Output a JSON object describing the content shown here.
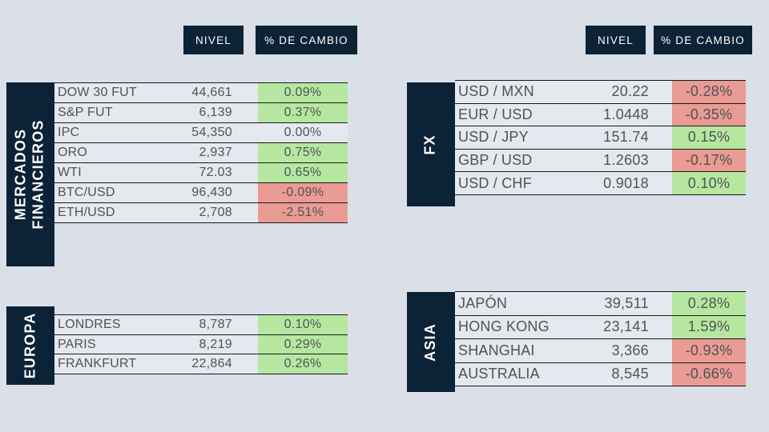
{
  "headers": {
    "nivel": "NIVEL",
    "cambio": "% DE CAMBIO"
  },
  "colors": {
    "navy": "#0c2236",
    "positive_green": "#b6e7a0",
    "negative_red": "#e99b94",
    "page_background": "#dbdfe7",
    "row_background": "#e5e8ee",
    "text": "#4f5357"
  },
  "chart_data": [
    {
      "id": "mercados",
      "type": "table",
      "title": "MERCADOS FINANCIEROS",
      "columns": [
        "",
        "NIVEL",
        "% DE CAMBIO"
      ],
      "rows": [
        {
          "label": "DOW 30 FUT",
          "level": "44,661",
          "change": "0.09%"
        },
        {
          "label": "S&P FUT",
          "level": "6,139",
          "change": "0.37%"
        },
        {
          "label": "IPC",
          "level": "54,350",
          "change": "0.00%"
        },
        {
          "label": "ORO",
          "level": "2,937",
          "change": "0.75%"
        },
        {
          "label": "WTI",
          "level": "72.03",
          "change": "0.65%"
        },
        {
          "label": "BTC/USD",
          "level": "96,430",
          "change": "-0.09%"
        },
        {
          "label": "ETH/USD",
          "level": "2,708",
          "change": "-2.51%"
        }
      ]
    },
    {
      "id": "fx",
      "type": "table",
      "title": "FX",
      "columns": [
        "",
        "NIVEL",
        "% DE CAMBIO"
      ],
      "rows": [
        {
          "label": "USD / MXN",
          "level": "20.22",
          "change": "-0.28%"
        },
        {
          "label": "EUR / USD",
          "level": "1.0448",
          "change": "-0.35%"
        },
        {
          "label": "USD / JPY",
          "level": "151.74",
          "change": "0.15%"
        },
        {
          "label": "GBP / USD",
          "level": "1.2603",
          "change": "-0.17%"
        },
        {
          "label": "USD / CHF",
          "level": "0.9018",
          "change": "0.10%"
        }
      ]
    },
    {
      "id": "europa",
      "type": "table",
      "title": "EUROPA",
      "columns": [
        "",
        "NIVEL",
        "% DE CAMBIO"
      ],
      "rows": [
        {
          "label": "LONDRES",
          "level": "8,787",
          "change": "0.10%"
        },
        {
          "label": "PARIS",
          "level": "8,219",
          "change": "0.29%"
        },
        {
          "label": "FRANKFURT",
          "level": "22,864",
          "change": "0.26%"
        }
      ]
    },
    {
      "id": "asia",
      "type": "table",
      "title": "ASIA",
      "columns": [
        "",
        "NIVEL",
        "% DE CAMBIO"
      ],
      "rows": [
        {
          "label": "JAPÓN",
          "level": "39,511",
          "change": "0.28%"
        },
        {
          "label": "HONG KONG",
          "level": "23,141",
          "change": "1.59%"
        },
        {
          "label": "SHANGHAI",
          "level": "3,366",
          "change": "-0.93%"
        },
        {
          "label": "AUSTRALIA",
          "level": "8,545",
          "change": "-0.66%"
        }
      ]
    }
  ]
}
